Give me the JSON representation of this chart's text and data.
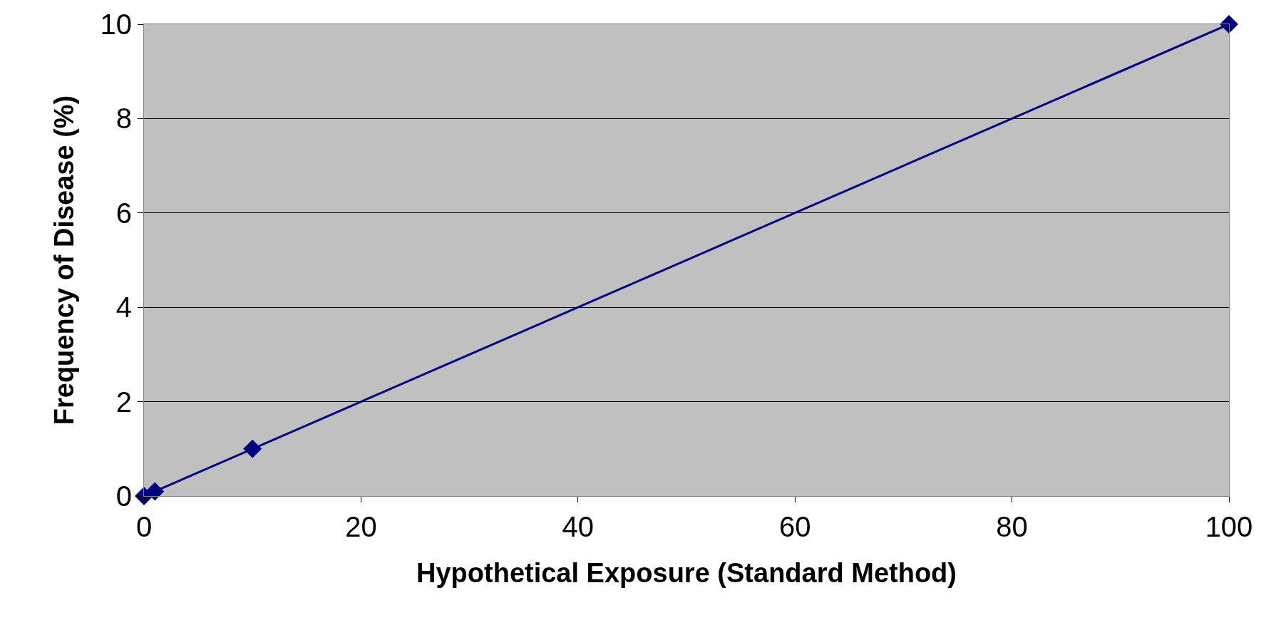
{
  "chart_data": {
    "type": "line",
    "xlabel": "Hypothetical Exposure (Standard Method)",
    "ylabel": "Frequency of Disease (%)",
    "x": [
      0,
      1,
      10,
      100
    ],
    "series": [
      {
        "color": "#000080",
        "values": [
          0,
          0.1,
          1,
          10
        ]
      }
    ],
    "xlim": [
      0,
      100
    ],
    "xticks": [
      0,
      20,
      40,
      60,
      80,
      100
    ],
    "ylim": [
      0,
      10
    ],
    "yticks": [
      0,
      2,
      4,
      6,
      8,
      10
    ],
    "grid": "y",
    "legend": false,
    "marker": "diamond",
    "line_style": "solid"
  }
}
